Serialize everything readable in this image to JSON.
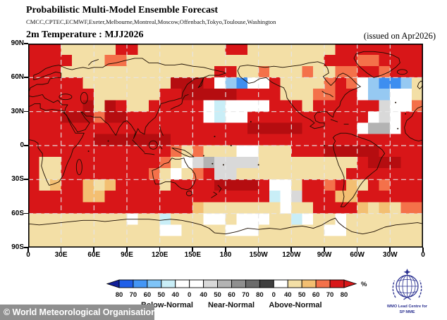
{
  "header": {
    "title": "Probabilistic Multi-Model Ensemble Forecast",
    "models": "CMCC,CPTEC,ECMWF,Exeter,Melbourne,Montreal,Moscow,Offenbach,Tokyo,Toulouse,Washington",
    "product_title": "2m Temperature : MJJ2026",
    "issued": "(issued on Apr2026)"
  },
  "map": {
    "lat_labels": [
      "90N",
      "60N",
      "30N",
      "0",
      "30S",
      "60S",
      "90S"
    ],
    "lon_labels": [
      "0",
      "30E",
      "60E",
      "90E",
      "120E",
      "150E",
      "180",
      "150W",
      "120W",
      "90W",
      "60W",
      "30W",
      "0"
    ],
    "gridline_color": "#e6e6e6",
    "coast_color": "#1b0c00",
    "palette": {
      "r": "#d81618",
      "d": "#b50d10",
      "o": "#f4714a",
      "t": "#f3bf72",
      "k": "#f3dfa6",
      "w": "#ffffff",
      "l": "#d9d9d9",
      "g": "#b3b3b3",
      "c": "#c9eef7",
      "e": "#96c9f2",
      "b": "#3e8ef0"
    },
    "rows": [
      "rrrkkkkkrrkkkkkkkkrrkkkkkkkkrrrrrrrr",
      "rrrrkkkookkkkkkkkkkkkkkkkkkrrroorrrr",
      "rrrkkkkkkkkkkkkkkrrkkokkkokkoorrorrr",
      "rrrrrkkkkkkkkdddrwebwwrkkkkorowebbek",
      "rrrrrrkkkkkkrrdddddrrrrkkkoorrweewwk",
      "rrrrrdkdrkkrrrrrwcwwwwrrrkrrrrrrlwwo",
      "rrrdddoddrrrrrrrwcwwrrrrrrrrrrrwlwrr",
      "rrrrrrrrrrrrrrrrrrrrdddddrrrrrwggwrr",
      "rrrrrrdddddddrrrrrrrrrrrrrrrrrrrrrrr",
      "rrrrrrrrrrrrrokokkkwwkkkrrrdddddrrrr",
      "rkkrrrrrrrrrokwlgllllkkkkkkkkkrdddrr",
      "rkkrrrrrrrrokwkorllkkkkkkkkkkrrrrrrr",
      "rktrrtktrrrrkrrrrddddrwwkrrortkrorrr",
      "rrrrrttrrrrrrrrrrrrrrrcwlrrrttrrrrrr",
      "rrrrrrrrrrrrrrrtkkkkkkkwkkrrrrtktkoo",
      "kkkkkkkkkwkkckkkwwkwwwkkcwkkwkkkkkkk",
      "kkkkkkkkkkkkwwkkkkwwwkkkkkkwwkkkkkkk",
      "kkkkkkkkkkkkkkkkkkkkkkkkkkkkkkkkkkkk"
    ]
  },
  "legend": {
    "tick_labels": [
      "80",
      "70",
      "60",
      "50",
      "40",
      "0",
      "40",
      "50",
      "60",
      "70",
      "80",
      "0",
      "40",
      "50",
      "60",
      "70",
      "80"
    ],
    "segment_colors": [
      "#1f5fe8",
      "#4496f5",
      "#7ec4f8",
      "#c9eef7",
      "#ffffff",
      "#ffffff",
      "#d9d9d9",
      "#b3b3b3",
      "#8f8f8f",
      "#6b6b6b",
      "#3f3f3f",
      "#ffffff",
      "#f3dfa6",
      "#f3bf72",
      "#f4714a",
      "#d81618"
    ],
    "left_arrow_color": "#12209a",
    "right_arrow_color": "#d81618",
    "categories": [
      "Below-Normal",
      "Near-Normal",
      "Above-Normal"
    ],
    "unit": "%"
  },
  "footer": {
    "copyright": "© World Meteorological Organisation",
    "wmo_line1": "WMO Lead Centre for",
    "wmo_line2": "SP MME",
    "wmo_color": "#2b3190"
  }
}
